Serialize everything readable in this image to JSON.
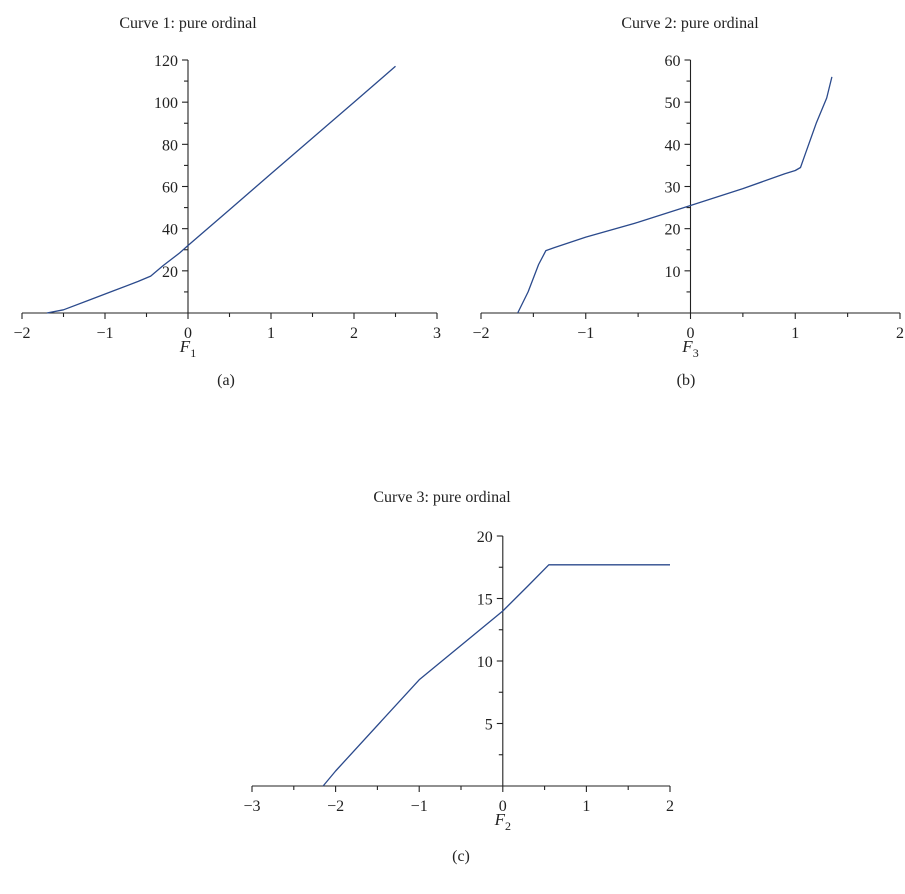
{
  "chart_data": [
    {
      "id": "a",
      "type": "line",
      "title": "Curve 1: pure ordinal",
      "xlabel": "F",
      "xlabel_sub": "1",
      "caption": "(a)",
      "xlim": [
        -2,
        3
      ],
      "ylim": [
        0,
        120
      ],
      "xticks": [
        -2,
        -1,
        0,
        1,
        2,
        3
      ],
      "xtick_labels": [
        "−2",
        "−1",
        "0",
        "1",
        "2",
        "3"
      ],
      "yticks": [
        20,
        40,
        60,
        80,
        100,
        120
      ],
      "ytick_labels": [
        "20",
        "40",
        "60",
        "80",
        "100",
        "120"
      ],
      "grid": false,
      "series": [
        {
          "color": "#2b4a8c",
          "x": [
            -1.7,
            -1.5,
            -1.2,
            -0.9,
            -0.6,
            -0.45,
            -0.3,
            -0.1,
            0,
            0.5,
            1,
            1.5,
            2,
            2.5
          ],
          "y": [
            0,
            1.5,
            6,
            10.5,
            15,
            17.5,
            22.5,
            28.5,
            32,
            49,
            66,
            83,
            100,
            117
          ]
        }
      ]
    },
    {
      "id": "b",
      "type": "line",
      "title": "Curve 2: pure ordinal",
      "xlabel": "F",
      "xlabel_sub": "3",
      "caption": "(b)",
      "xlim": [
        -2,
        2
      ],
      "ylim": [
        0,
        60
      ],
      "xticks": [
        -2,
        -1,
        0,
        1,
        2
      ],
      "xtick_labels": [
        "−2",
        "−1",
        "0",
        "1",
        "2"
      ],
      "yticks": [
        10,
        20,
        30,
        40,
        50,
        60
      ],
      "ytick_labels": [
        "10",
        "20",
        "30",
        "40",
        "50",
        "60"
      ],
      "grid": false,
      "series": [
        {
          "color": "#2b4a8c",
          "x": [
            -1.65,
            -1.55,
            -1.45,
            -1.38,
            -1.3,
            -1,
            -0.5,
            0,
            0.5,
            0.9,
            1.0,
            1.05,
            1.1,
            1.2,
            1.3,
            1.35
          ],
          "y": [
            0,
            5,
            11.5,
            14.8,
            15.5,
            18,
            21.5,
            25.5,
            29.5,
            33,
            33.8,
            34.5,
            38,
            45,
            51,
            56
          ]
        }
      ]
    },
    {
      "id": "c",
      "type": "line",
      "title": "Curve 3: pure ordinal",
      "xlabel": "F",
      "xlabel_sub": "2",
      "caption": "(c)",
      "xlim": [
        -3,
        2
      ],
      "ylim": [
        0,
        20
      ],
      "xticks": [
        -3,
        -2,
        -1,
        0,
        1,
        2
      ],
      "xtick_labels": [
        "−3",
        "−2",
        "−1",
        "0",
        "1",
        "2"
      ],
      "yticks": [
        5,
        10,
        15,
        20
      ],
      "ytick_labels": [
        "5",
        "10",
        "15",
        "20"
      ],
      "grid": false,
      "series": [
        {
          "color": "#2b4a8c",
          "x": [
            -2.15,
            -2,
            -1,
            0,
            0.3,
            0.55,
            2
          ],
          "y": [
            0,
            1.2,
            8.5,
            14,
            16,
            17.7,
            17.7
          ]
        }
      ]
    }
  ]
}
